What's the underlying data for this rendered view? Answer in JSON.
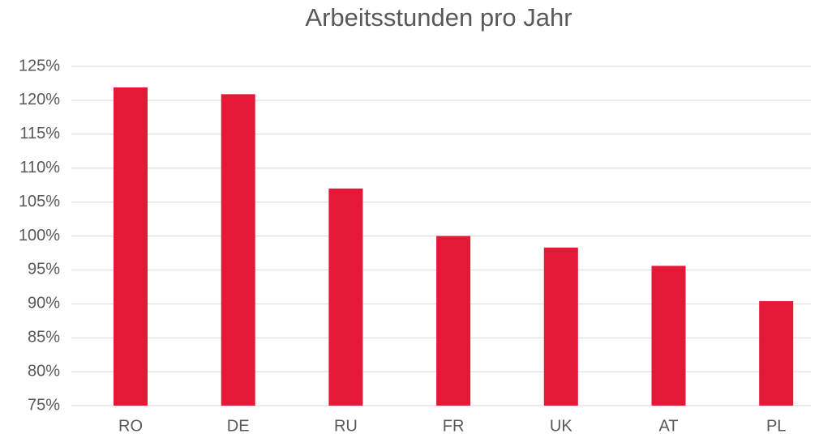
{
  "chart_data": {
    "type": "bar",
    "title": "Arbeitsstunden pro Jahr",
    "categories": [
      "RO",
      "DE",
      "RU",
      "FR",
      "UK",
      "AT",
      "PL"
    ],
    "values": [
      121.9,
      120.9,
      107,
      100,
      98.3,
      95.6,
      90.4
    ],
    "color": "#e31937",
    "ylim": [
      75,
      125
    ],
    "yticks": [
      {
        "value": 75,
        "label": "75%"
      },
      {
        "value": 80,
        "label": "80%"
      },
      {
        "value": 85,
        "label": "85%"
      },
      {
        "value": 90,
        "label": "90%"
      },
      {
        "value": 95,
        "label": "95%"
      },
      {
        "value": 100,
        "label": "100%"
      },
      {
        "value": 105,
        "label": "105%"
      },
      {
        "value": 110,
        "label": "110%"
      },
      {
        "value": 115,
        "label": "115%"
      },
      {
        "value": 120,
        "label": "120%"
      },
      {
        "value": 125,
        "label": "125%"
      }
    ],
    "grid": true
  }
}
